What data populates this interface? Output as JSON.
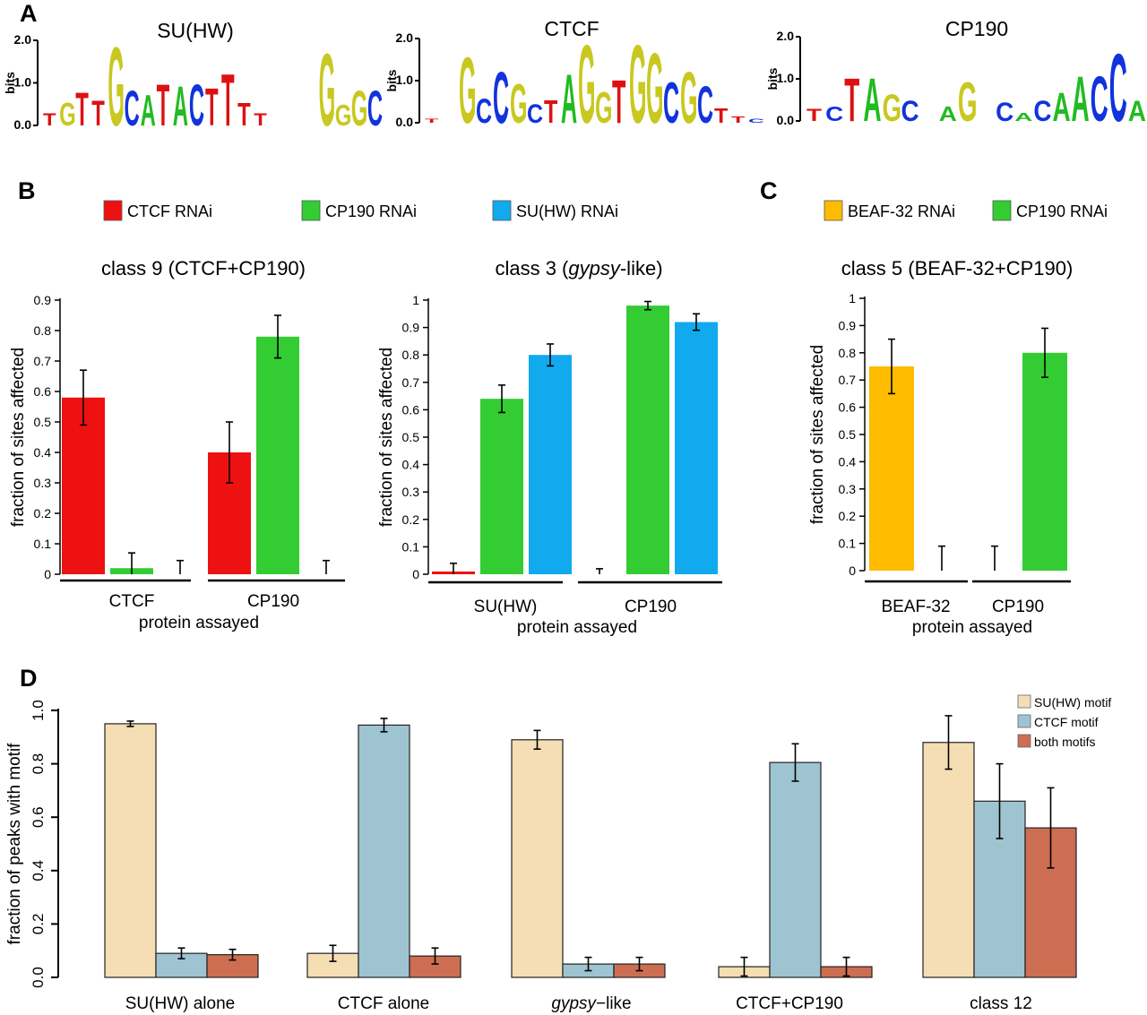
{
  "panels": {
    "A": {
      "label": "A"
    },
    "B": {
      "label": "B"
    },
    "C": {
      "label": "C"
    },
    "D": {
      "label": "D"
    }
  },
  "logos": [
    {
      "title": "SU(HW)",
      "ymax": "2.0",
      "ymid": "1.0",
      "ymin": "0.0",
      "ylabel": "bits",
      "letters": [
        [
          "T",
          0.3
        ],
        [
          "G",
          0.55
        ],
        [
          "T",
          0.8
        ],
        [
          "T",
          0.6
        ],
        [
          "G",
          1.9
        ],
        [
          "C",
          0.85
        ],
        [
          "A",
          0.75
        ],
        [
          "T",
          1.0
        ],
        [
          "A",
          0.95
        ],
        [
          "C",
          1.0
        ],
        [
          "T",
          0.9
        ],
        [
          "T",
          1.25
        ],
        [
          "T",
          0.55
        ],
        [
          "T",
          0.3
        ],
        [
          "",
          0
        ],
        [
          "",
          0
        ],
        [
          "",
          0
        ],
        [
          "G",
          1.75
        ],
        [
          "G",
          0.5
        ],
        [
          "G",
          0.85
        ],
        [
          "C",
          0.85
        ]
      ]
    },
    {
      "title": "CTCF",
      "ymax": "2.0",
      "ymid": "1.0",
      "ymin": "0.0",
      "ylabel": "bits",
      "letters": [
        [
          "T",
          0.1
        ],
        [
          "",
          0
        ],
        [
          "G",
          1.6
        ],
        [
          "C",
          0.6
        ],
        [
          "C",
          1.25
        ],
        [
          "G",
          0.95
        ],
        [
          "C",
          0.45
        ],
        [
          "T",
          0.55
        ],
        [
          "A",
          1.2
        ],
        [
          "G",
          1.9
        ],
        [
          "G",
          0.75
        ],
        [
          "T",
          1.05
        ],
        [
          "G",
          1.9
        ],
        [
          "G",
          1.7
        ],
        [
          "C",
          1.0
        ],
        [
          "G",
          1.25
        ],
        [
          "C",
          0.9
        ],
        [
          "T",
          0.35
        ],
        [
          "T",
          0.15
        ],
        [
          "C",
          0.1
        ]
      ]
    },
    {
      "title": "CP190",
      "ymax": "2.0",
      "ymid": "1.0",
      "ymin": "0.0",
      "ylabel": "bits",
      "letters": [
        [
          "T",
          0.3
        ],
        [
          "C",
          0.35
        ],
        [
          "T",
          1.05
        ],
        [
          "A",
          1.05
        ],
        [
          "G",
          0.65
        ],
        [
          "C",
          0.5
        ],
        [
          "",
          0
        ],
        [
          "A",
          0.35
        ],
        [
          "G",
          0.95
        ],
        [
          "",
          0
        ],
        [
          "C",
          0.45
        ],
        [
          "A",
          0.2
        ],
        [
          "C",
          0.5
        ],
        [
          "A",
          0.7
        ],
        [
          "A",
          1.1
        ],
        [
          "C",
          1.1
        ],
        [
          "C",
          1.65
        ],
        [
          "A",
          0.5
        ]
      ]
    }
  ],
  "legendB": [
    {
      "name": "CTCF RNAi",
      "color": "#ee1111"
    },
    {
      "name": "CP190 RNAi",
      "color": "#33cc33"
    },
    {
      "name": "SU(HW) RNAi",
      "color": "#11aaee"
    }
  ],
  "legendC": [
    {
      "name": "BEAF-32 RNAi",
      "color": "#ffbb00"
    },
    {
      "name": "CP190 RNAi",
      "color": "#33cc33"
    }
  ],
  "legendD": [
    {
      "name": "SU(HW) motif",
      "color": "#f5deb3"
    },
    {
      "name": "CTCF motif",
      "color": "#9fc4d1"
    },
    {
      "name": "both motifs",
      "color": "#cd6e53"
    }
  ],
  "chart_data": [
    {
      "panel": "B-left",
      "type": "bar",
      "title": "class 9 (CTCF+CP190)",
      "xlabel": "protein assayed",
      "ylabel": "fraction of sites affected",
      "ylim": [
        0,
        0.9
      ],
      "yticks": [
        "0",
        "0.1",
        "0.2",
        "0.3",
        "0.4",
        "0.5",
        "0.6",
        "0.7",
        "0.8",
        "0.9"
      ],
      "categories": [
        "CTCF",
        "CP190"
      ],
      "series": [
        {
          "name": "CTCF RNAi",
          "values": [
            0.58,
            0.4
          ],
          "errors": [
            0.09,
            0.1
          ]
        },
        {
          "name": "CP190 RNAi",
          "values": [
            0.02,
            0.78
          ],
          "errors": [
            0.05,
            0.07
          ]
        },
        {
          "name": "SU(HW) RNAi",
          "values": [
            0.0,
            0.0
          ],
          "errors": [
            0.045,
            0.045
          ]
        }
      ]
    },
    {
      "panel": "B-right",
      "type": "bar",
      "title": "class 3 (gypsy-like)",
      "title_pre": "class 3 (",
      "title_em": "gypsy",
      "title_post": "-like)",
      "xlabel": "protein assayed",
      "ylabel": "fraction of sites affected",
      "ylim": [
        0,
        1
      ],
      "yticks": [
        "0",
        "0.1",
        "0.2",
        "0.3",
        "0.4",
        "0.5",
        "0.6",
        "0.7",
        "0.8",
        "0.9",
        "1"
      ],
      "categories": [
        "SU(HW)",
        "CP190"
      ],
      "series": [
        {
          "name": "CTCF RNAi",
          "values": [
            0.01,
            0.0
          ],
          "errors": [
            0.03,
            0.02
          ]
        },
        {
          "name": "CP190 RNAi",
          "values": [
            0.64,
            0.98
          ],
          "errors": [
            0.05,
            0.015
          ]
        },
        {
          "name": "SU(HW) RNAi",
          "values": [
            0.8,
            0.92
          ],
          "errors": [
            0.04,
            0.03
          ]
        }
      ]
    },
    {
      "panel": "C",
      "type": "bar",
      "title": "class 5 (BEAF-32+CP190)",
      "xlabel": "protein assayed",
      "ylabel": "fraction of sites affected",
      "ylim": [
        0,
        1
      ],
      "yticks": [
        "0",
        "0.1",
        "0.2",
        "0.3",
        "0.4",
        "0.5",
        "0.6",
        "0.7",
        "0.8",
        "0.9",
        "1"
      ],
      "categories": [
        "BEAF-32",
        "CP190"
      ],
      "series": [
        {
          "name": "BEAF-32 RNAi",
          "values": [
            0.75,
            0.0
          ],
          "errors": [
            0.1,
            0.09
          ]
        },
        {
          "name": "CP190 RNAi",
          "values": [
            0.0,
            0.8
          ],
          "errors": [
            0.09,
            0.09
          ]
        }
      ]
    },
    {
      "panel": "D",
      "type": "bar",
      "title": "",
      "xlabel": "",
      "ylabel": "fraction of peaks with motif",
      "ylim": [
        0,
        1
      ],
      "yticks": [
        "0.0",
        "0.2",
        "0.4",
        "0.6",
        "0.8",
        "1.0"
      ],
      "categories": [
        "SU(HW) alone",
        "CTCF alone",
        "gypsy−like",
        "CTCF+CP190",
        "class 12"
      ],
      "categories_italic_prefix": [
        "",
        "",
        "gypsy",
        "",
        ""
      ],
      "categories_rest": [
        "SU(HW) alone",
        "CTCF alone",
        "−like",
        "CTCF+CP190",
        "class 12"
      ],
      "series": [
        {
          "name": "SU(HW) motif",
          "values": [
            0.95,
            0.09,
            0.89,
            0.04,
            0.88
          ],
          "errors": [
            0.01,
            0.03,
            0.035,
            0.035,
            0.1
          ]
        },
        {
          "name": "CTCF motif",
          "values": [
            0.09,
            0.945,
            0.05,
            0.805,
            0.66
          ],
          "errors": [
            0.02,
            0.025,
            0.025,
            0.07,
            0.14
          ]
        },
        {
          "name": "both motifs",
          "values": [
            0.085,
            0.08,
            0.05,
            0.04,
            0.56
          ],
          "errors": [
            0.02,
            0.03,
            0.025,
            0.035,
            0.15
          ]
        }
      ]
    }
  ]
}
